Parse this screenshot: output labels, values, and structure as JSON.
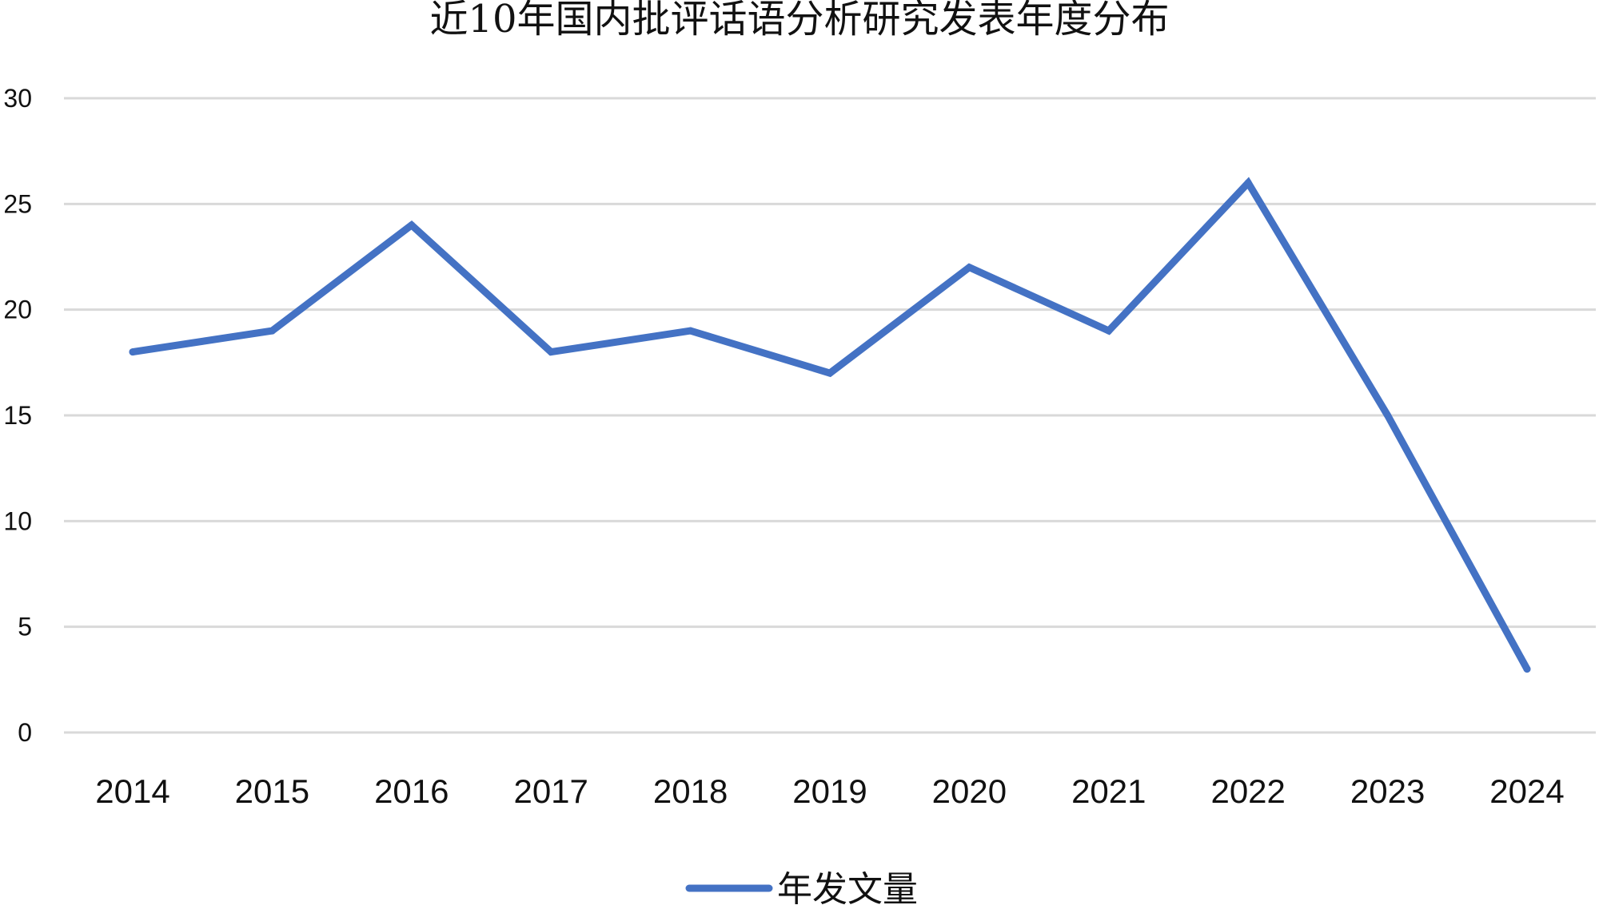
{
  "chart_data": {
    "type": "line",
    "title": "近10年国内批评话语分析研究发表年度分布",
    "xlabel": "",
    "ylabel": "",
    "categories": [
      "2014",
      "2015",
      "2016",
      "2017",
      "2018",
      "2019",
      "2020",
      "2021",
      "2022",
      "2023",
      "2024"
    ],
    "series": [
      {
        "name": "年发文量",
        "values": [
          18,
          19,
          24,
          18,
          19,
          17,
          22,
          19,
          26,
          15,
          3
        ],
        "color": "#4472C4"
      }
    ],
    "ylim": [
      0,
      30
    ],
    "yticks": [
      "0",
      "5",
      "10",
      "15",
      "20",
      "25",
      "30"
    ],
    "grid": true,
    "legend_position": "bottom-center",
    "gridline_color": "#d9d9d9"
  }
}
